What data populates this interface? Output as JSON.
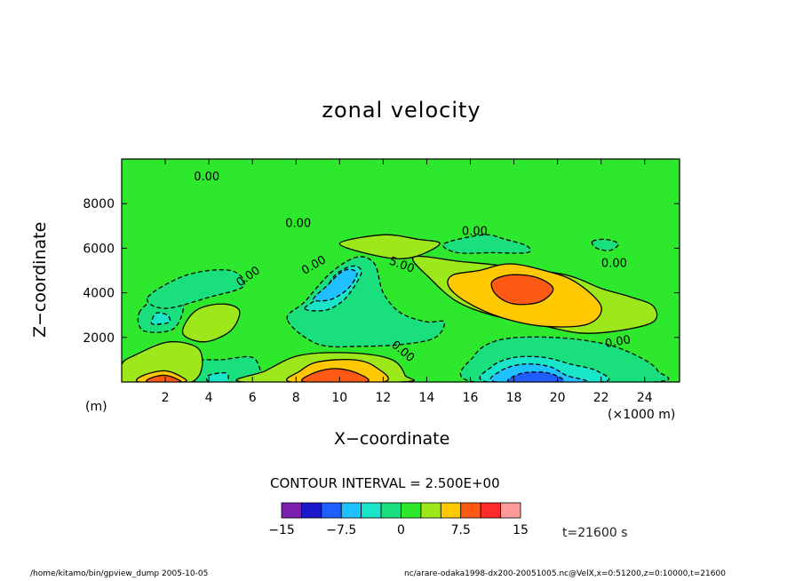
{
  "footer": {
    "left": "/home/kitamo/bin/gpview_dump  2005-10-05",
    "right": "nc/arare-odaka1998-dx200-20051005.nc@VelX,x=0:51200,z=0:10000,t=21600"
  },
  "colorbar": {
    "colors": [
      "#7a1fae",
      "#1a1acc",
      "#1f5fff",
      "#1fc0ff",
      "#19e6c8",
      "#19e07d",
      "#2ee82e",
      "#9ce81a",
      "#ffc800",
      "#ff5a14",
      "#ff2a2a",
      "#ff9a9a"
    ],
    "tick_labels": [
      "−15",
      "−7.5",
      "0",
      "7.5",
      "15"
    ]
  },
  "chart_data": {
    "type": "contour",
    "title": "zonal velocity",
    "xlabel": "X−coordinate",
    "ylabel": "Z−coordinate",
    "x_unit_label": "(×1000 m)",
    "y_unit_label": "(m)",
    "xlim": [
      0,
      25.6
    ],
    "ylim": [
      0,
      10000
    ],
    "x_ticks": [
      2,
      4,
      6,
      8,
      10,
      12,
      14,
      16,
      18,
      20,
      22,
      24
    ],
    "x_tick_labels": [
      "2",
      "4",
      "6",
      "8",
      "10",
      "12",
      "14",
      "16",
      "18",
      "20",
      "22",
      "24"
    ],
    "y_ticks": [
      2000,
      4000,
      6000,
      8000
    ],
    "y_tick_labels": [
      "2000",
      "4000",
      "6000",
      "8000"
    ],
    "contour_interval_label": "CONTOUR INTERVAL = 2.500E+00",
    "time_label": "t=21600 s",
    "background_value": 0,
    "regions": [
      {
        "value": -2.5,
        "points": [
          [
            1.4,
            0
          ],
          [
            1.6,
            900
          ],
          [
            3,
            1300
          ],
          [
            3.2,
            700
          ],
          [
            3,
            0
          ]
        ]
      },
      {
        "value": -2.5,
        "points": [
          [
            0.8,
            3100
          ],
          [
            1.6,
            3700
          ],
          [
            2.8,
            3600
          ],
          [
            2.4,
            2400
          ],
          [
            1,
            2300
          ]
        ]
      },
      {
        "value": -2.5,
        "points": [
          [
            1.2,
            3800
          ],
          [
            3,
            4800
          ],
          [
            5,
            5000
          ],
          [
            5.6,
            4300
          ],
          [
            4,
            3800
          ],
          [
            2,
            3300
          ]
        ]
      },
      {
        "value": -2.5,
        "points": [
          [
            3.4,
            0
          ],
          [
            3.4,
            900
          ],
          [
            4.6,
            1000
          ],
          [
            6,
            1100
          ],
          [
            6.4,
            300
          ],
          [
            6.2,
            0
          ]
        ]
      },
      {
        "value": -2.5,
        "points": [
          [
            7.6,
            2800
          ],
          [
            8.4,
            3600
          ],
          [
            9.6,
            4900
          ],
          [
            10.8,
            5600
          ],
          [
            11.6,
            5300
          ],
          [
            12,
            4000
          ],
          [
            12.8,
            3100
          ],
          [
            14,
            2700
          ],
          [
            14.8,
            2700
          ],
          [
            14.4,
            2000
          ],
          [
            13,
            1700
          ],
          [
            11,
            1600
          ],
          [
            9,
            1700
          ]
        ]
      },
      {
        "value": -2.5,
        "points": [
          [
            14.8,
            6200
          ],
          [
            16.6,
            6600
          ],
          [
            17.6,
            6400
          ],
          [
            18.6,
            6100
          ],
          [
            18.6,
            5800
          ],
          [
            17,
            5800
          ],
          [
            15.4,
            5800
          ]
        ]
      },
      {
        "value": -2.5,
        "points": [
          [
            21.6,
            6300
          ],
          [
            22.2,
            6400
          ],
          [
            22.8,
            6200
          ],
          [
            22.4,
            5900
          ],
          [
            21.8,
            6000
          ]
        ]
      },
      {
        "value": -2.5,
        "points": [
          [
            16.2,
            0
          ],
          [
            16.2,
            1200
          ],
          [
            17.4,
            1900
          ],
          [
            19.8,
            2000
          ],
          [
            22.2,
            1700
          ],
          [
            23.8,
            1100
          ],
          [
            24.6,
            500
          ],
          [
            24.4,
            0
          ]
        ]
      },
      {
        "value": -5,
        "points": [
          [
            1.4,
            2800
          ],
          [
            1.6,
            3100
          ],
          [
            2.1,
            3000
          ],
          [
            2.2,
            2700
          ],
          [
            1.8,
            2600
          ],
          [
            1.4,
            2600
          ]
        ]
      },
      {
        "value": -5,
        "points": [
          [
            8.4,
            3300
          ],
          [
            9.2,
            3900
          ],
          [
            9.8,
            4800
          ],
          [
            10.6,
            5200
          ],
          [
            11,
            4900
          ],
          [
            10.4,
            3900
          ],
          [
            9.8,
            3400
          ],
          [
            9.2,
            3200
          ]
        ]
      },
      {
        "value": -5,
        "points": [
          [
            4,
            0
          ],
          [
            4,
            300
          ],
          [
            4.8,
            400
          ],
          [
            4.8,
            0
          ]
        ]
      },
      {
        "value": -5,
        "points": [
          [
            16.8,
            0
          ],
          [
            17,
            700
          ],
          [
            18,
            1100
          ],
          [
            19.4,
            1100
          ],
          [
            20.6,
            800
          ],
          [
            21.8,
            500
          ],
          [
            22,
            0
          ]
        ]
      },
      {
        "value": -7.5,
        "points": [
          [
            8.8,
            3700
          ],
          [
            9.4,
            4300
          ],
          [
            10.2,
            5000
          ],
          [
            10.8,
            4900
          ],
          [
            10.4,
            4200
          ],
          [
            9.6,
            3700
          ]
        ]
      },
      {
        "value": -7.5,
        "points": [
          [
            17.2,
            0
          ],
          [
            17.4,
            500
          ],
          [
            18.4,
            800
          ],
          [
            19.6,
            700
          ],
          [
            20.4,
            300
          ],
          [
            21.2,
            0
          ]
        ]
      },
      {
        "value": -10,
        "points": [
          [
            17.8,
            0
          ],
          [
            18.4,
            400
          ],
          [
            19.6,
            400
          ],
          [
            20.2,
            0
          ]
        ]
      },
      {
        "value": 2.5,
        "points": [
          [
            2.8,
            2200
          ],
          [
            3.4,
            3200
          ],
          [
            4.6,
            3500
          ],
          [
            5.4,
            3200
          ],
          [
            5,
            2300
          ],
          [
            3.8,
            1800
          ]
        ]
      },
      {
        "value": 2.5,
        "points": [
          [
            10,
            6200
          ],
          [
            12,
            6600
          ],
          [
            13.6,
            6400
          ],
          [
            14.6,
            6200
          ],
          [
            13.4,
            5600
          ],
          [
            12,
            5600
          ]
        ]
      },
      {
        "value": 2.5,
        "points": [
          [
            13.4,
            5600
          ],
          [
            15.6,
            5400
          ],
          [
            17.6,
            5200
          ],
          [
            20.4,
            4800
          ],
          [
            22,
            4200
          ],
          [
            23.4,
            3800
          ],
          [
            24.4,
            3400
          ],
          [
            24.4,
            2700
          ],
          [
            22.8,
            2300
          ],
          [
            21,
            2200
          ],
          [
            19,
            2600
          ],
          [
            17,
            3000
          ],
          [
            15.4,
            3600
          ],
          [
            14.2,
            4600
          ]
        ]
      },
      {
        "value": 2.5,
        "points": [
          [
            0,
            800
          ],
          [
            0.6,
            1200
          ],
          [
            2.2,
            1800
          ],
          [
            3.6,
            1400
          ],
          [
            3.2,
            0
          ],
          [
            0,
            0
          ]
        ]
      },
      {
        "value": 2.5,
        "points": [
          [
            5.6,
            0
          ],
          [
            6.6,
            500
          ],
          [
            8.2,
            1200
          ],
          [
            10.6,
            1300
          ],
          [
            12.4,
            1000
          ],
          [
            13,
            300
          ],
          [
            12.8,
            0
          ]
        ]
      },
      {
        "value": 5,
        "points": [
          [
            15.2,
            4800
          ],
          [
            16.4,
            5000
          ],
          [
            17.8,
            5300
          ],
          [
            19.4,
            5000
          ],
          [
            20.8,
            4500
          ],
          [
            22,
            3400
          ],
          [
            21.4,
            2600
          ],
          [
            19.4,
            2500
          ],
          [
            17.4,
            2900
          ],
          [
            15.8,
            3600
          ],
          [
            15,
            4300
          ]
        ]
      },
      {
        "value": 5,
        "points": [
          [
            0.8,
            0
          ],
          [
            1,
            300
          ],
          [
            2,
            500
          ],
          [
            2.8,
            200
          ],
          [
            2.8,
            0
          ]
        ]
      },
      {
        "value": 5,
        "points": [
          [
            7.8,
            0
          ],
          [
            8.2,
            500
          ],
          [
            9,
            900
          ],
          [
            10.6,
            1000
          ],
          [
            11.6,
            700
          ],
          [
            12,
            0
          ]
        ]
      },
      {
        "value": 7.5,
        "points": [
          [
            17,
            4500
          ],
          [
            17.8,
            4800
          ],
          [
            19,
            4700
          ],
          [
            19.8,
            4200
          ],
          [
            19.2,
            3600
          ],
          [
            18,
            3500
          ],
          [
            17.2,
            3900
          ]
        ]
      },
      {
        "value": 7.5,
        "points": [
          [
            1.2,
            0
          ],
          [
            1.4,
            200
          ],
          [
            2,
            300
          ],
          [
            2.6,
            100
          ],
          [
            2.6,
            0
          ]
        ]
      },
      {
        "value": 7.5,
        "points": [
          [
            8.4,
            0
          ],
          [
            8.8,
            400
          ],
          [
            9.8,
            600
          ],
          [
            10.8,
            400
          ],
          [
            11.2,
            0
          ]
        ]
      }
    ],
    "contour_labels": [
      {
        "text": "0.00",
        "x": 3.9,
        "y": 9050,
        "rotate": 0
      },
      {
        "text": "0.00",
        "x": 8.1,
        "y": 6950,
        "rotate": 0
      },
      {
        "text": "0.00",
        "x": 16.2,
        "y": 6600,
        "rotate": 0
      },
      {
        "text": "0.00",
        "x": 22.6,
        "y": 5150,
        "rotate": 0
      },
      {
        "text": "0.00",
        "x": 22.8,
        "y": 1650,
        "rotate": -10
      },
      {
        "text": "0.00",
        "x": 5.9,
        "y": 4600,
        "rotate": -35
      },
      {
        "text": "0.00",
        "x": 8.9,
        "y": 5100,
        "rotate": -30
      },
      {
        "text": "0.00",
        "x": 12.8,
        "y": 1250,
        "rotate": 40
      },
      {
        "text": "5.00",
        "x": 12.8,
        "y": 5100,
        "rotate": 20
      }
    ]
  }
}
